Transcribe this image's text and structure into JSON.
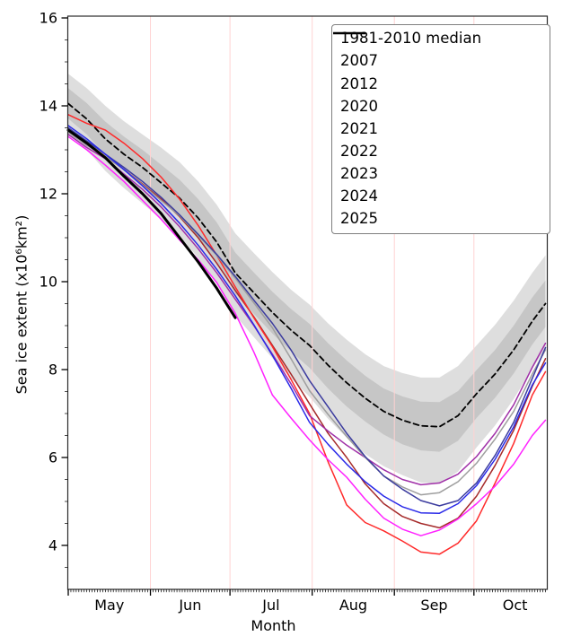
{
  "chart_data": {
    "type": "line",
    "title": "",
    "xlabel": "Month",
    "ylabel": "Sea ice extent (x10⁶km²)",
    "x_unit": "days from May 1",
    "x_days": [
      0,
      7,
      14,
      21,
      28,
      35,
      42,
      49,
      56,
      63,
      70,
      77,
      84,
      91,
      98,
      105,
      112,
      119,
      126,
      133,
      140,
      147,
      154,
      161,
      168,
      175,
      180
    ],
    "ylim": [
      3,
      16
    ],
    "yticks": [
      4,
      6,
      8,
      10,
      12,
      14,
      16
    ],
    "y_minor_step": 0.5,
    "xlim_days": [
      0,
      180.5
    ],
    "months": [
      {
        "label": "May",
        "start_day": 0,
        "center_day": 15.5
      },
      {
        "label": "Jun",
        "start_day": 31,
        "center_day": 46
      },
      {
        "label": "Jul",
        "start_day": 61,
        "center_day": 76.5
      },
      {
        "label": "Aug",
        "start_day": 92,
        "center_day": 107.5
      },
      {
        "label": "Sep",
        "start_day": 123,
        "center_day": 138
      },
      {
        "label": "Oct",
        "start_day": 153,
        "center_day": 168.5
      }
    ],
    "grid": {
      "month_gridline_days": [
        31,
        61,
        92,
        123,
        153
      ],
      "color": "#ffd2d2"
    },
    "bands": [
      {
        "name": "interdecile-range",
        "color": "#dedede",
        "upper": [
          14.73,
          14.4,
          14.0,
          13.65,
          13.35,
          13.05,
          12.72,
          12.28,
          11.75,
          11.1,
          10.65,
          10.22,
          9.82,
          9.48,
          9.05,
          8.68,
          8.35,
          8.08,
          7.92,
          7.82,
          7.82,
          8.08,
          8.55,
          9.02,
          9.57,
          10.2,
          10.6
        ],
        "lower": [
          13.36,
          13.0,
          12.52,
          12.13,
          11.78,
          11.42,
          11.03,
          10.54,
          9.95,
          9.23,
          8.74,
          8.26,
          7.8,
          7.38,
          6.88,
          6.45,
          6.08,
          5.8,
          5.6,
          5.43,
          5.4,
          5.68,
          6.23,
          6.73,
          7.33,
          8.02,
          8.47
        ]
      },
      {
        "name": "interquartile-range",
        "color": "#c6c6c6",
        "upper": [
          14.4,
          14.06,
          13.64,
          13.3,
          13.0,
          12.66,
          12.32,
          11.88,
          11.35,
          10.66,
          10.21,
          9.77,
          9.38,
          9.04,
          8.6,
          8.21,
          7.86,
          7.57,
          7.39,
          7.27,
          7.26,
          7.51,
          7.99,
          8.45,
          9.0,
          9.64,
          10.03
        ],
        "lower": [
          13.71,
          13.35,
          12.88,
          12.52,
          12.21,
          11.85,
          11.48,
          11.02,
          10.45,
          9.73,
          9.27,
          8.82,
          8.41,
          8.04,
          7.57,
          7.16,
          6.82,
          6.52,
          6.3,
          6.16,
          6.13,
          6.38,
          6.9,
          7.36,
          7.91,
          8.57,
          8.97
        ]
      }
    ],
    "series": [
      {
        "name": "1981-2010 median",
        "color": "#000000",
        "width": 1.8,
        "dash": "6 4",
        "values": [
          14.05,
          13.7,
          13.25,
          12.9,
          12.6,
          12.25,
          11.9,
          11.45,
          10.9,
          10.2,
          9.75,
          9.3,
          8.9,
          8.55,
          8.1,
          7.7,
          7.35,
          7.05,
          6.85,
          6.72,
          6.7,
          6.95,
          7.45,
          7.9,
          8.45,
          9.1,
          9.5
        ]
      },
      {
        "name": "2007",
        "color": "#a52a2a",
        "width": 1.5,
        "values": [
          13.45,
          13.15,
          12.85,
          12.55,
          12.22,
          11.88,
          11.48,
          11.0,
          10.42,
          9.8,
          9.2,
          8.55,
          7.9,
          7.22,
          6.55,
          6.0,
          5.4,
          4.95,
          4.66,
          4.5,
          4.4,
          4.62,
          5.12,
          5.82,
          6.62,
          7.62,
          8.25
        ]
      },
      {
        "name": "2012",
        "color": "#ff2a2a",
        "width": 1.5,
        "values": [
          13.8,
          13.6,
          13.45,
          13.15,
          12.8,
          12.38,
          11.88,
          11.28,
          10.6,
          9.88,
          9.18,
          8.52,
          7.78,
          7.0,
          5.9,
          4.92,
          4.52,
          4.33,
          4.1,
          3.85,
          3.8,
          4.05,
          4.56,
          5.42,
          6.32,
          7.42,
          7.95
        ]
      },
      {
        "name": "2020",
        "color": "#ff22ff",
        "width": 1.5,
        "values": [
          13.3,
          13.0,
          12.65,
          12.28,
          11.85,
          11.42,
          10.95,
          10.5,
          9.98,
          9.28,
          8.4,
          7.42,
          6.9,
          6.4,
          5.95,
          5.55,
          5.05,
          4.62,
          4.37,
          4.22,
          4.35,
          4.6,
          4.95,
          5.35,
          5.85,
          6.5,
          6.85
        ]
      },
      {
        "name": "2021",
        "color": "#a030a8",
        "width": 1.5,
        "values": [
          13.35,
          13.05,
          12.8,
          12.45,
          12.1,
          11.7,
          11.25,
          10.75,
          10.2,
          9.6,
          9.0,
          8.35,
          7.68,
          6.95,
          6.6,
          6.28,
          6.0,
          5.72,
          5.5,
          5.38,
          5.42,
          5.62,
          6.02,
          6.55,
          7.2,
          8.05,
          8.6
        ]
      },
      {
        "name": "2022",
        "color": "#9e9e9e",
        "width": 1.5,
        "values": [
          13.4,
          13.1,
          12.85,
          12.55,
          12.2,
          11.85,
          11.5,
          11.05,
          10.6,
          10.08,
          9.52,
          8.95,
          8.25,
          7.52,
          6.98,
          6.48,
          6.0,
          5.58,
          5.33,
          5.15,
          5.2,
          5.45,
          5.87,
          6.42,
          7.05,
          7.9,
          8.45
        ]
      },
      {
        "name": "2023",
        "color": "#3b3b9e",
        "width": 1.5,
        "values": [
          13.5,
          13.2,
          12.9,
          12.6,
          12.28,
          11.92,
          11.52,
          11.08,
          10.62,
          10.12,
          9.58,
          9.05,
          8.45,
          7.75,
          7.15,
          6.55,
          6.02,
          5.58,
          5.28,
          5.02,
          4.9,
          5.02,
          5.42,
          6.05,
          6.8,
          7.8,
          8.5
        ]
      },
      {
        "name": "2024",
        "color": "#2929e8",
        "width": 1.5,
        "values": [
          13.55,
          13.25,
          12.9,
          12.55,
          12.18,
          11.78,
          11.33,
          10.83,
          10.28,
          9.68,
          9.02,
          8.32,
          7.58,
          6.8,
          6.3,
          5.85,
          5.45,
          5.12,
          4.88,
          4.74,
          4.73,
          4.95,
          5.36,
          5.96,
          6.7,
          7.65,
          8.15
        ]
      },
      {
        "name": "2025",
        "color": "#000000",
        "width": 3,
        "values": [
          13.45,
          13.15,
          12.82,
          12.4,
          12.0,
          11.55,
          11.0,
          10.45,
          9.85,
          9.18
        ]
      }
    ],
    "legend_position": "upper right",
    "frame_color": "#2a2a2a"
  }
}
